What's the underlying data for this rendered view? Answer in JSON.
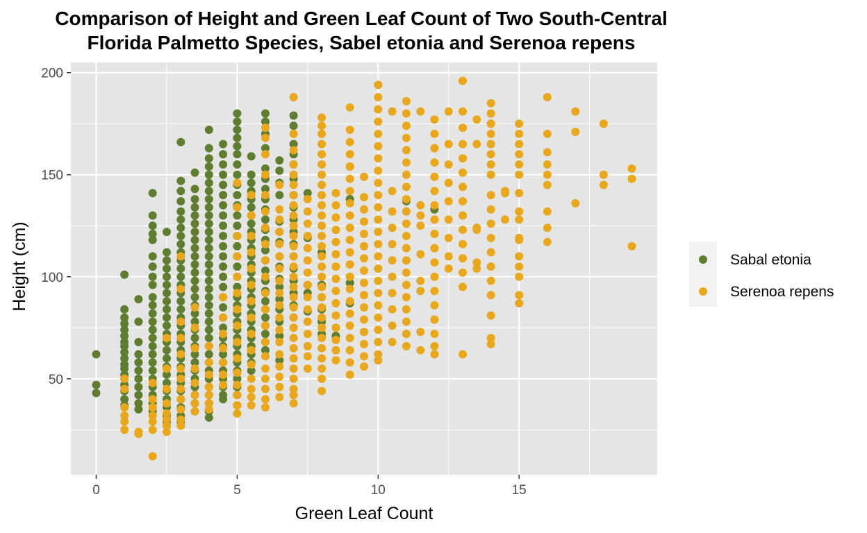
{
  "colors": {
    "panel_background": "#E5E5E5",
    "grid": "#FFFFFF",
    "sabal": "#5E7D2F",
    "serenoa": "#E9A81B",
    "legend_background": "#F2F2F2",
    "tick_text": "#4D4D4D"
  },
  "chart_data": {
    "type": "scatter",
    "title": [
      "Comparison of Height and Green Leaf Count of Two South-Central",
      "Florida Palmetto Species, Sabel etonia and Serenoa repens"
    ],
    "xlabel": "Green Leaf Count",
    "ylabel": "Height (cm)",
    "xlim": [
      -0.9,
      19.9
    ],
    "ylim": [
      3,
      205
    ],
    "x_ticks": [
      0,
      5,
      10,
      15
    ],
    "x_tick_labels": [
      "0",
      "5",
      "10",
      "15"
    ],
    "y_ticks": [
      50,
      100,
      150,
      200
    ],
    "y_tick_labels": [
      "50",
      "100",
      "150",
      "200"
    ],
    "grid": true,
    "legend_position": "right",
    "series": [
      {
        "name": "Sabal etonia",
        "color": "#5E7D2F",
        "columns": [
          {
            "x": 0,
            "ys": [
              62,
              47,
              43
            ]
          },
          {
            "x": 1,
            "ys": [
              101,
              84,
              80,
              77,
              74,
              71,
              68,
              66,
              63,
              60,
              57,
              55,
              52,
              50,
              47,
              44,
              40,
              37
            ]
          },
          {
            "x": 1.5,
            "ys": [
              89,
              78,
              68,
              62,
              58,
              54,
              50,
              46,
              42,
              38,
              35
            ]
          },
          {
            "x": 2,
            "ys": [
              141,
              130,
              125,
              121,
              118,
              110,
              105,
              100,
              96,
              90,
              86,
              82,
              78,
              74,
              70,
              66,
              62,
              58,
              54,
              50,
              46,
              42,
              38,
              34
            ]
          },
          {
            "x": 2.5,
            "ys": [
              122,
              112,
              108,
              104,
              100,
              96,
              92,
              88,
              84,
              80,
              76,
              72,
              68,
              64,
              60,
              56,
              52,
              48,
              44,
              40,
              36,
              32,
              29,
              27
            ]
          },
          {
            "x": 3,
            "ys": [
              166,
              147,
              142,
              137,
              132,
              128,
              124,
              120,
              116,
              112,
              108,
              104,
              100,
              96,
              92,
              88,
              84,
              80,
              76,
              72,
              68,
              64,
              60,
              56,
              52,
              48,
              44,
              40,
              36,
              32,
              29
            ]
          },
          {
            "x": 3.5,
            "ys": [
              151,
              143,
              138,
              134,
              130,
              126,
              122,
              118,
              114,
              110,
              106,
              102,
              98,
              94,
              90,
              86,
              82,
              78,
              74,
              70,
              66,
              62,
              58,
              54,
              50,
              46,
              42,
              38,
              34
            ]
          },
          {
            "x": 4,
            "ys": [
              172,
              163,
              158,
              154,
              150,
              146,
              142,
              138,
              134,
              130,
              126,
              122,
              118,
              114,
              110,
              106,
              102,
              98,
              94,
              90,
              86,
              82,
              78,
              74,
              70,
              66,
              62,
              58,
              54,
              50,
              46,
              42,
              38,
              34,
              31
            ]
          },
          {
            "x": 4.5,
            "ys": [
              165,
              160,
              155,
              150,
              145,
              140,
              135,
              130,
              125,
              120,
              115,
              110,
              105,
              100,
              95,
              90,
              85,
              80,
              75,
              70,
              66,
              62,
              58,
              54,
              50,
              46,
              42,
              40
            ]
          },
          {
            "x": 5,
            "ys": [
              180,
              176,
              172,
              168,
              164,
              160,
              155,
              150,
              145,
              140,
              135,
              130,
              125,
              120,
              115,
              110,
              105,
              100,
              95,
              90,
              86,
              82,
              78,
              74,
              70,
              66,
              62,
              58,
              54,
              50,
              46,
              42,
              37
            ]
          },
          {
            "x": 5.5,
            "ys": [
              159,
              150,
              146,
              142,
              138,
              134,
              130,
              126,
              122,
              118,
              114,
              110,
              106,
              102,
              98,
              94,
              90,
              86,
              82,
              78,
              74,
              70,
              66,
              62,
              58,
              54
            ]
          },
          {
            "x": 6,
            "ys": [
              180,
              176,
              170,
              163,
              153,
              148,
              143,
              138,
              133,
              128,
              123,
              118,
              113,
              108,
              103,
              98,
              93,
              88,
              84,
              80,
              76,
              72,
              68,
              64
            ]
          },
          {
            "x": 6.5,
            "ys": [
              157,
              152,
              146,
              140,
              127,
              122,
              117,
              110,
              105,
              99,
              95,
              89,
              84,
              78,
              71,
              59
            ]
          },
          {
            "x": 7,
            "ys": [
              179,
              174,
              165,
              160,
              155,
              148,
              140,
              134,
              128,
              122,
              116,
              110,
              104,
              98,
              92,
              86,
              80
            ]
          },
          {
            "x": 7.5,
            "ys": [
              141,
              119,
              96,
              92,
              83
            ]
          },
          {
            "x": 8,
            "ys": [
              112,
              96,
              90,
              84,
              78,
              72
            ]
          },
          {
            "x": 8.5,
            "ys": [
              71
            ]
          },
          {
            "x": 9,
            "ys": [
              154,
              138,
              97,
              87
            ]
          },
          {
            "x": 11,
            "ys": [
              137
            ]
          },
          {
            "x": 12,
            "ys": [
              133
            ]
          }
        ]
      },
      {
        "name": "Serenoa repens",
        "color": "#E9A81B",
        "columns": [
          {
            "x": 1,
            "ys": [
              50,
              45,
              36,
              32,
              29,
              25
            ]
          },
          {
            "x": 1.5,
            "ys": [
              24,
              23
            ]
          },
          {
            "x": 2,
            "ys": [
              48,
              40,
              36,
              32,
              29,
              25,
              12
            ]
          },
          {
            "x": 2.5,
            "ys": [
              70,
              55,
              45,
              38,
              33,
              30,
              27,
              24
            ]
          },
          {
            "x": 3,
            "ys": [
              110,
              94,
              78,
              70,
              62,
              55,
              50,
              45,
              40,
              35,
              30,
              27
            ]
          },
          {
            "x": 3.5,
            "ys": [
              85,
              75,
              65,
              55,
              48,
              42,
              38,
              34
            ]
          },
          {
            "x": 4,
            "ys": [
              66,
              58,
              52,
              46,
              42,
              38,
              35
            ]
          },
          {
            "x": 4.5,
            "ys": [
              90,
              80,
              72,
              65,
              58,
              52,
              47
            ]
          },
          {
            "x": 5,
            "ys": [
              146,
              134,
              120,
              110,
              100,
              92,
              84,
              76,
              68,
              60,
              53,
              47,
              42,
              37,
              33
            ]
          },
          {
            "x": 5.5,
            "ys": [
              140,
              130,
              120,
              112,
              104,
              96,
              88,
              80,
              72,
              64,
              57,
              50,
              45,
              41,
              37
            ]
          },
          {
            "x": 6,
            "ys": [
              173,
              168,
              160,
              150,
              140,
              132,
              124,
              116,
              108,
              100,
              92,
              84,
              76,
              68,
              61,
              55,
              50,
              45,
              40,
              36
            ]
          },
          {
            "x": 6.5,
            "ys": [
              145,
              133,
              128,
              122,
              116,
              110,
              104,
              98,
              92,
              86,
              80,
              74,
              68,
              62,
              56,
              51,
              46,
              41
            ]
          },
          {
            "x": 7,
            "ys": [
              188,
              170,
              162,
              155,
              150,
              145,
              140,
              135,
              130,
              125,
              120,
              115,
              110,
              105,
              100,
              95,
              90,
              85,
              80,
              75,
              70,
              65,
              60,
              55,
              50,
              45,
              42,
              38
            ]
          },
          {
            "x": 7.5,
            "ys": [
              138,
              132,
              126,
              120,
              114,
              108,
              102,
              96,
              90,
              84,
              78,
              72,
              66,
              61,
              55
            ]
          },
          {
            "x": 8,
            "ys": [
              178,
              174,
              170,
              165,
              160,
              155,
              150,
              145,
              140,
              135,
              130,
              125,
              120,
              115,
              110,
              105,
              100,
              95,
              90,
              85,
              80,
              75,
              70,
              65,
              60,
              55,
              50,
              44
            ]
          },
          {
            "x": 8.5,
            "ys": [
              141,
              135,
              129,
              123,
              117,
              111,
              105,
              99,
              93,
              87,
              81,
              75,
              69,
              64,
              59
            ]
          },
          {
            "x": 9,
            "ys": [
              183,
              172,
              166,
              160,
              154,
              148,
              142,
              136,
              130,
              124,
              118,
              112,
              106,
              100,
              94,
              88,
              82,
              76,
              70,
              64,
              58,
              52
            ]
          },
          {
            "x": 9.5,
            "ys": [
              149,
              139,
              133,
              127,
              121,
              115,
              109,
              103,
              97,
              91,
              85,
              79,
              73,
              67,
              61,
              56
            ]
          },
          {
            "x": 10,
            "ys": [
              194,
              188,
              182,
              176,
              170,
              164,
              158,
              152,
              146,
              140,
              134,
              128,
              122,
              116,
              110,
              104,
              98,
              92,
              86,
              80,
              74,
              68,
              62,
              59
            ]
          },
          {
            "x": 10.5,
            "ys": [
              181,
              142,
              132,
              124,
              116,
              108,
              100,
              92,
              84,
              76,
              68
            ]
          },
          {
            "x": 11,
            "ys": [
              186,
              180,
              174,
              168,
              162,
              156,
              150,
              144,
              138,
              132,
              126,
              120,
              114,
              108,
              102,
              96,
              90,
              84,
              78,
              72,
              66
            ]
          },
          {
            "x": 11.5,
            "ys": [
              181,
              135,
              130,
              125,
              111,
              98,
              93,
              73,
              64
            ]
          },
          {
            "x": 12,
            "ys": [
              177,
              170,
              163,
              156,
              149,
              142,
              135,
              128,
              121,
              114,
              107,
              100,
              93,
              86,
              79,
              72,
              66,
              62
            ]
          },
          {
            "x": 12.5,
            "ys": [
              181,
              165,
              155,
              146,
              137,
              128,
              119,
              110,
              104
            ]
          },
          {
            "x": 13,
            "ys": [
              196,
              181,
              173,
              165,
              158,
              151,
              144,
              137,
              130,
              123,
              116,
              109,
              102,
              95,
              62
            ]
          },
          {
            "x": 13.5,
            "ys": [
              177,
              165,
              124,
              123,
              107,
              104
            ]
          },
          {
            "x": 14,
            "ys": [
              185,
              180,
              175,
              170,
              165,
              160,
              155,
              150,
              140,
              133,
              126,
              119,
              112,
              105,
              98,
              91,
              81,
              70,
              67
            ]
          },
          {
            "x": 14.5,
            "ys": [
              142,
              141,
              128
            ]
          },
          {
            "x": 15,
            "ys": [
              175,
              170,
              165,
              160,
              155,
              150,
              141,
              132,
              128,
              119,
              118,
              110,
              105,
              100,
              91,
              87
            ]
          },
          {
            "x": 16,
            "ys": [
              188,
              170,
              161,
              155,
              150,
              145,
              132,
              124,
              117
            ]
          },
          {
            "x": 17,
            "ys": [
              181,
              171,
              136
            ]
          },
          {
            "x": 18,
            "ys": [
              175,
              150,
              145
            ]
          },
          {
            "x": 19,
            "ys": [
              153,
              148,
              115
            ]
          }
        ]
      }
    ]
  }
}
